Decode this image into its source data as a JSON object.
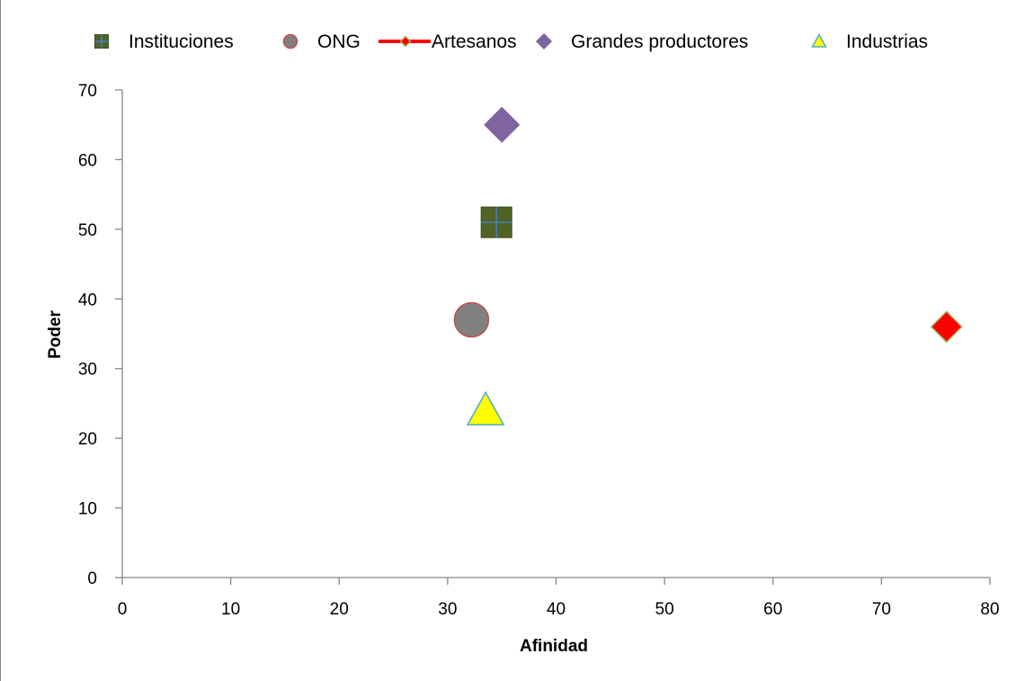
{
  "chart_data": {
    "type": "scatter",
    "title": "",
    "xlabel": "Afinidad",
    "ylabel": "Poder",
    "xlim": [
      0,
      80
    ],
    "ylim": [
      0,
      70
    ],
    "x_ticks": [
      0,
      10,
      20,
      30,
      40,
      50,
      60,
      70,
      80
    ],
    "y_ticks": [
      0,
      10,
      20,
      30,
      40,
      50,
      60,
      70
    ],
    "grid": false,
    "legend_position": "top",
    "series": [
      {
        "name": "Instituciones",
        "marker": "square-plus",
        "color": "#4F6228",
        "edge": "#4A7EBB",
        "points": [
          {
            "x": 34.5,
            "y": 51
          }
        ]
      },
      {
        "name": "ONG",
        "marker": "circle",
        "color": "#808080",
        "edge": "#C0504D",
        "points": [
          {
            "x": 32.2,
            "y": 37
          }
        ]
      },
      {
        "name": "Artesanos",
        "marker": "diamond",
        "color": "#FF0000",
        "edge": "#9BBB59",
        "line": "#FF0000",
        "points": [
          {
            "x": 76,
            "y": 36
          }
        ]
      },
      {
        "name": "Grandes productores",
        "marker": "diamond",
        "color": "#8064A2",
        "edge": "#8064A2",
        "points": [
          {
            "x": 35,
            "y": 65
          }
        ]
      },
      {
        "name": "Industrias",
        "marker": "triangle",
        "color": "#FFFF00",
        "edge": "#4BACC6",
        "points": [
          {
            "x": 33.5,
            "y": 24
          }
        ]
      }
    ]
  }
}
